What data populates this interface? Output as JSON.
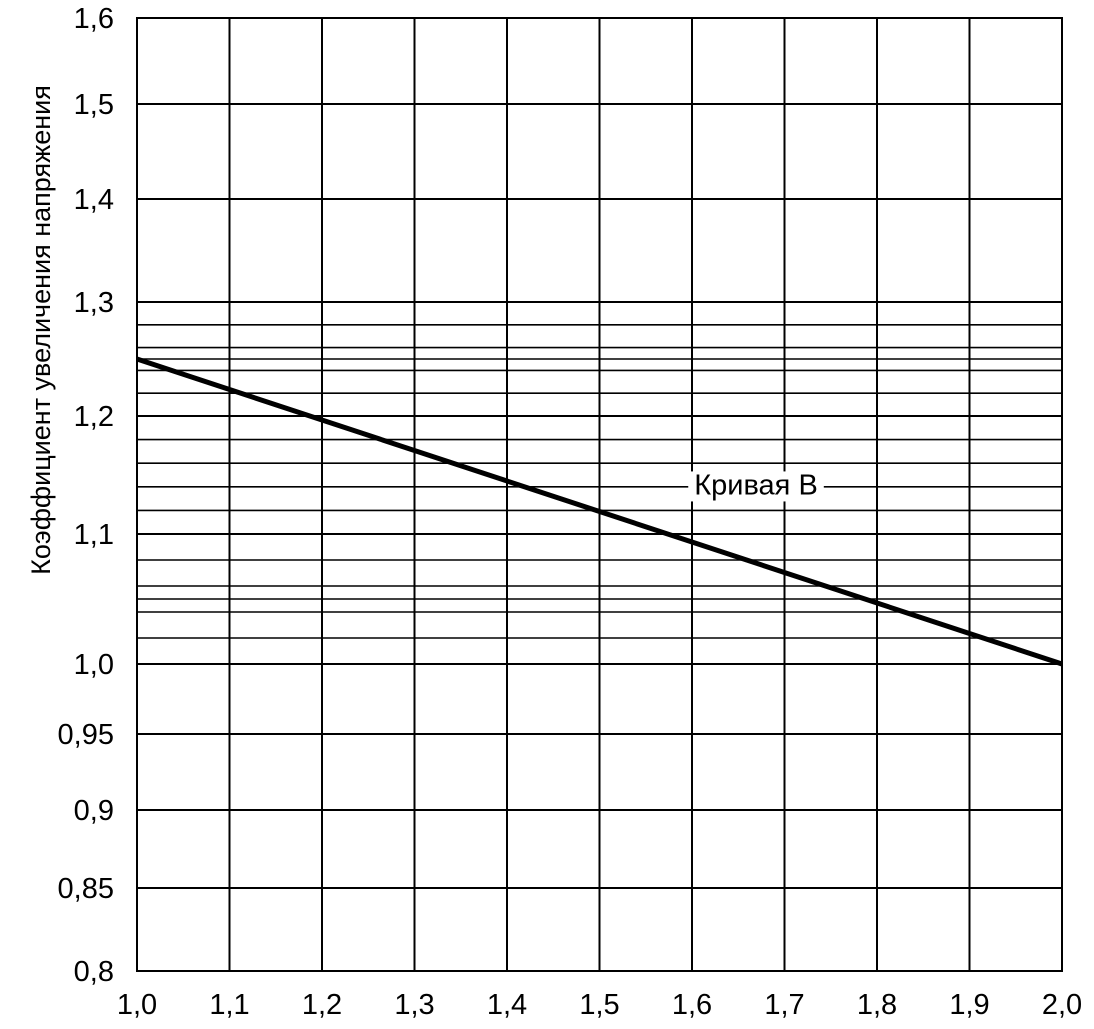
{
  "chart_data": {
    "type": "line",
    "title": "",
    "xlabel": "",
    "ylabel": "Коэффициент увеличения напряжения",
    "xlim": [
      1.0,
      2.0
    ],
    "ylim": [
      0.8,
      1.6
    ],
    "x_ticks": [
      1.0,
      1.1,
      1.2,
      1.3,
      1.4,
      1.5,
      1.6,
      1.7,
      1.8,
      1.9,
      2.0
    ],
    "x_tick_labels": [
      "1,0",
      "1,1",
      "1,2",
      "1,3",
      "1,4",
      "1,5",
      "1,6",
      "1,7",
      "1,8",
      "1,9",
      "2,0"
    ],
    "y_ticks": [
      0.8,
      0.85,
      0.9,
      0.95,
      1.0,
      1.1,
      1.2,
      1.3,
      1.4,
      1.5,
      1.6
    ],
    "y_tick_labels": [
      "0,8",
      "0,85",
      "0,9",
      "0,95",
      "1,0",
      "1,1",
      "1,2",
      "1,3",
      "1,4",
      "1,5",
      "1,6"
    ],
    "y_minor_gridlines": [
      1.02,
      1.04,
      1.05,
      1.06,
      1.08,
      1.12,
      1.14,
      1.16,
      1.18,
      1.22,
      1.24,
      1.25,
      1.26,
      1.28
    ],
    "grid": true,
    "series": [
      {
        "x": [
          1.0,
          2.0
        ],
        "y": [
          1.25,
          1.0
        ]
      }
    ],
    "annotation": {
      "text": "Кривая B",
      "x": 1.57,
      "y": 1.142
    }
  }
}
